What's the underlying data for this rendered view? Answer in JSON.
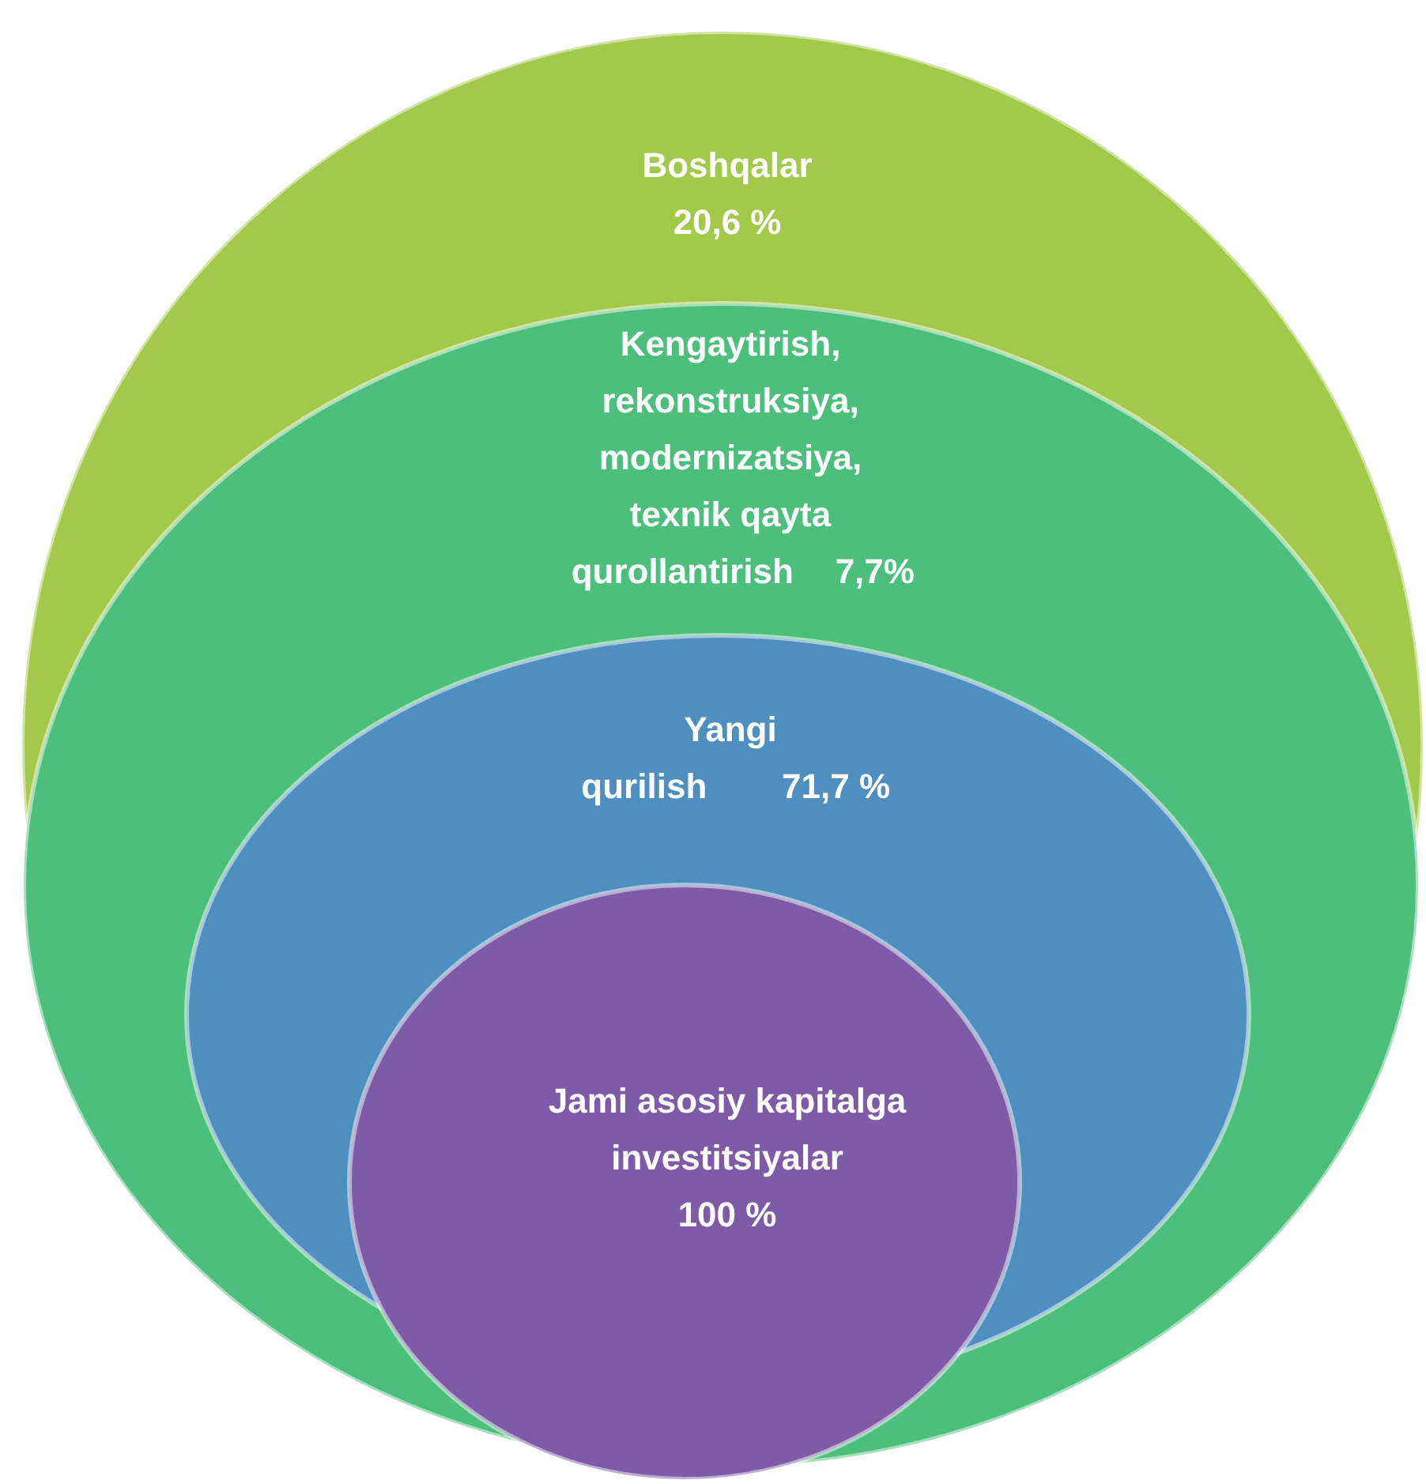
{
  "chart_data": {
    "type": "other",
    "categories": [
      "Boshqalar",
      "Kengaytirish,\nrekonstruksiya,\nmodernizatsiya,\ntexnik qayta\nqurollantirish",
      "Yangi\nqurilish",
      "Jami asosiy kapitalga\ninvestitsiyalar"
    ],
    "values": [
      20.6,
      7.7,
      71.7,
      100
    ],
    "value_labels": [
      "20,6 %",
      "7,7%",
      "71,7 %",
      "100 %"
    ],
    "colors": [
      "#a3c94b",
      "#4dbf7c",
      "#4f8fbf",
      "#7d5ba6"
    ]
  }
}
